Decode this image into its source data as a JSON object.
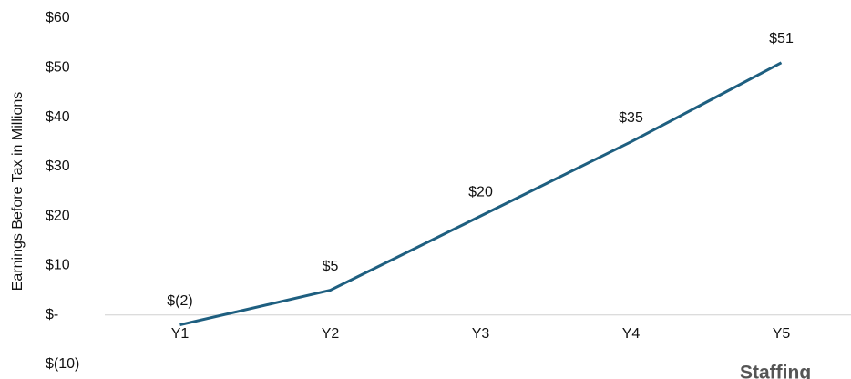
{
  "chart_data": {
    "type": "line",
    "y_label": "Earnings Before Tax in Millions",
    "categories": [
      "Y1",
      "Y2",
      "Y3",
      "Y4",
      "Y5"
    ],
    "series": [
      {
        "name": "Earnings Before Tax",
        "color": "#1e5f80",
        "values": [
          -2,
          5,
          20,
          35,
          51
        ],
        "value_labels": [
          "$(2)",
          "$5",
          "$20",
          "$35",
          "$51"
        ]
      }
    ],
    "ylim": [
      -10,
      60
    ],
    "yticks": [
      {
        "value": -10,
        "label": "$(10)"
      },
      {
        "value": 0,
        "label": "$-"
      },
      {
        "value": 10,
        "label": "$10"
      },
      {
        "value": 20,
        "label": "$20"
      },
      {
        "value": 30,
        "label": "$30"
      },
      {
        "value": 40,
        "label": "$40"
      },
      {
        "value": 50,
        "label": "$50"
      },
      {
        "value": 60,
        "label": "$60"
      }
    ],
    "grid": false,
    "annotation": "Staffing"
  }
}
